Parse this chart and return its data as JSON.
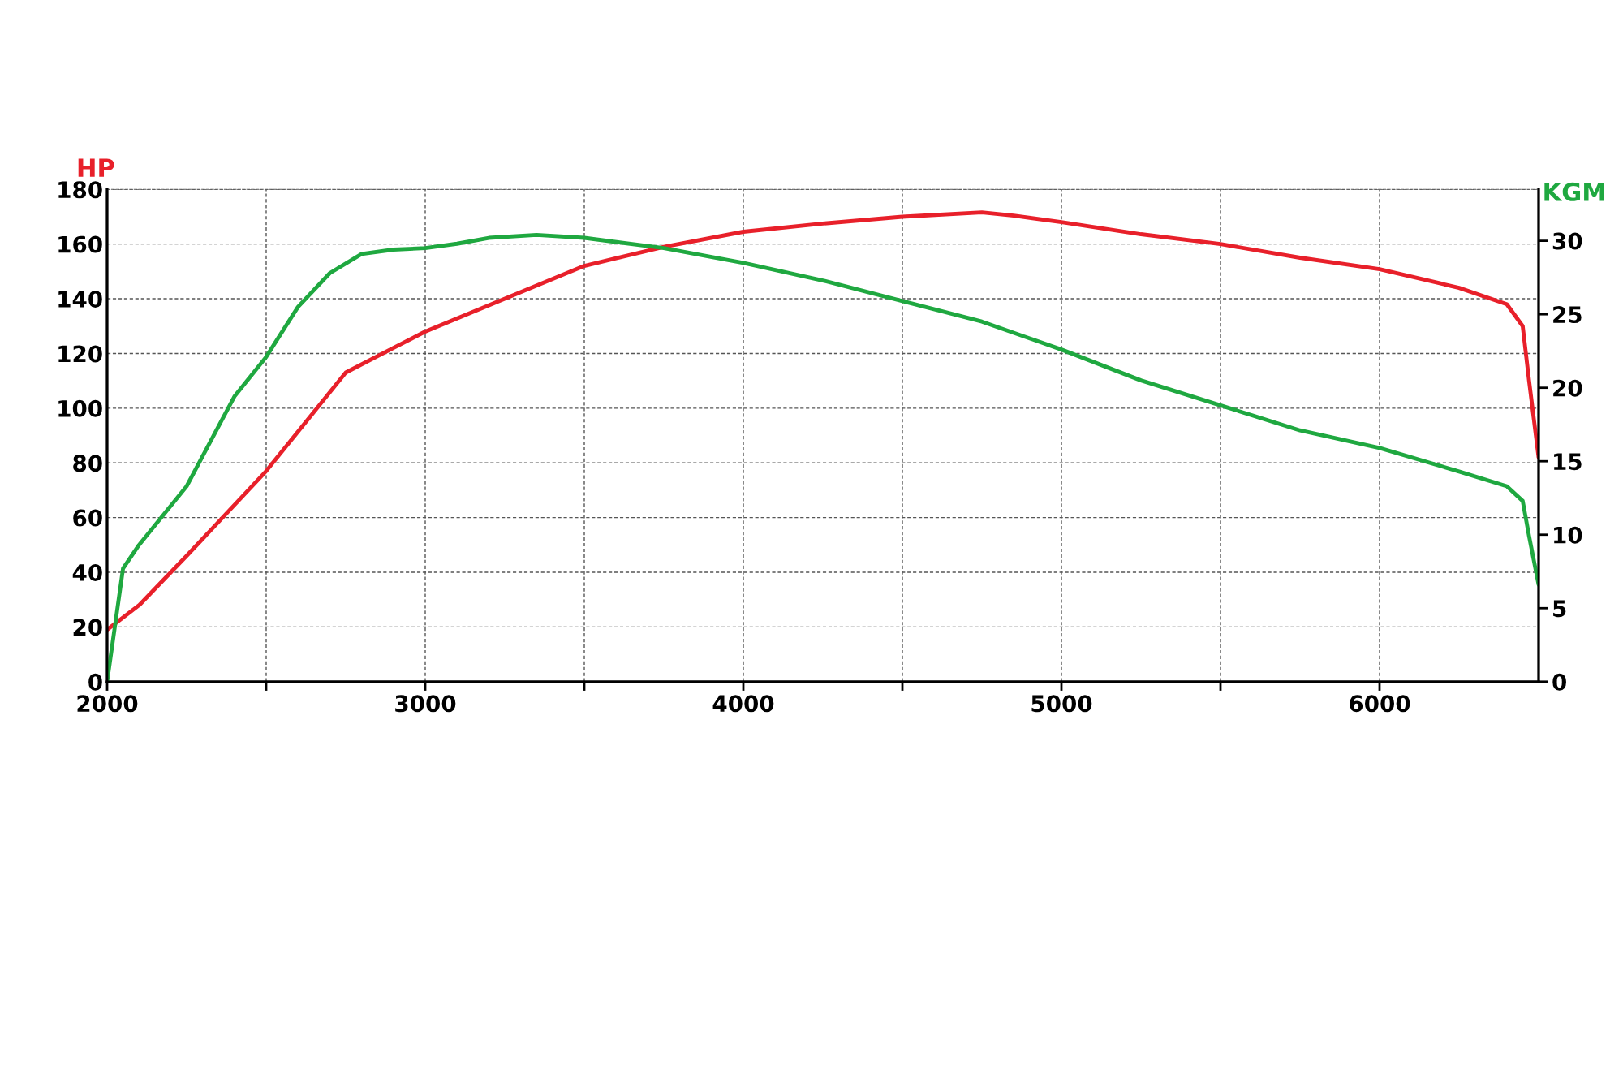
{
  "chart_data": {
    "type": "line",
    "ylabel": "HP",
    "y2label": "KGM",
    "xlim": [
      2000,
      6500
    ],
    "xticks": [
      2000,
      {
        "value": 2500,
        "label": null
      },
      3000,
      {
        "value": 3500,
        "label": null
      },
      4000,
      {
        "value": 4500,
        "label": null
      },
      5000,
      {
        "value": 5500,
        "label": null
      },
      6000
    ],
    "ylim": [
      0,
      180
    ],
    "yticks": [
      0,
      20,
      40,
      60,
      80,
      100,
      120,
      140,
      160,
      180
    ],
    "y2lim": [
      0,
      33.5
    ],
    "y2ticks": [
      0,
      5,
      10,
      15,
      20,
      25,
      30
    ],
    "grid": true,
    "legend": false,
    "series": [
      {
        "color": "#e8202a",
        "x": [
          2000,
          2101,
          2250,
          2500,
          2750,
          2900,
          3000,
          3250,
          3500,
          3750,
          4000,
          4250,
          4500,
          4750,
          4850,
          5000,
          5250,
          5500,
          5750,
          6000,
          6250,
          6400,
          6450,
          6470,
          6500
        ],
        "values": [
          19,
          28,
          46,
          77,
          113,
          122,
          128,
          140,
          152,
          159,
          164.5,
          167.5,
          170,
          171.6,
          170.4,
          168,
          163.6,
          160,
          155,
          150.8,
          144,
          138,
          130,
          110,
          82
        ]
      },
      {
        "color": "#1fa840",
        "axis": "y2",
        "x": [
          2000,
          2050,
          2100,
          2250,
          2400,
          2500,
          2600,
          2700,
          2800,
          2900,
          3000,
          3100,
          3200,
          3350,
          3500,
          3750,
          4000,
          4250,
          4500,
          4750,
          5000,
          5250,
          5500,
          5750,
          6000,
          6250,
          6400,
          6450,
          6470,
          6500
        ],
        "values": [
          0,
          7.7,
          9.3,
          13.3,
          19.4,
          22.1,
          25.5,
          27.8,
          29.1,
          29.4,
          29.5,
          29.8,
          30.2,
          30.4,
          30.2,
          29.5,
          28.5,
          27.3,
          25.9,
          24.5,
          22.6,
          20.5,
          18.8,
          17.1,
          15.9,
          14.3,
          13.3,
          12.3,
          9.9,
          6.6
        ]
      }
    ]
  }
}
